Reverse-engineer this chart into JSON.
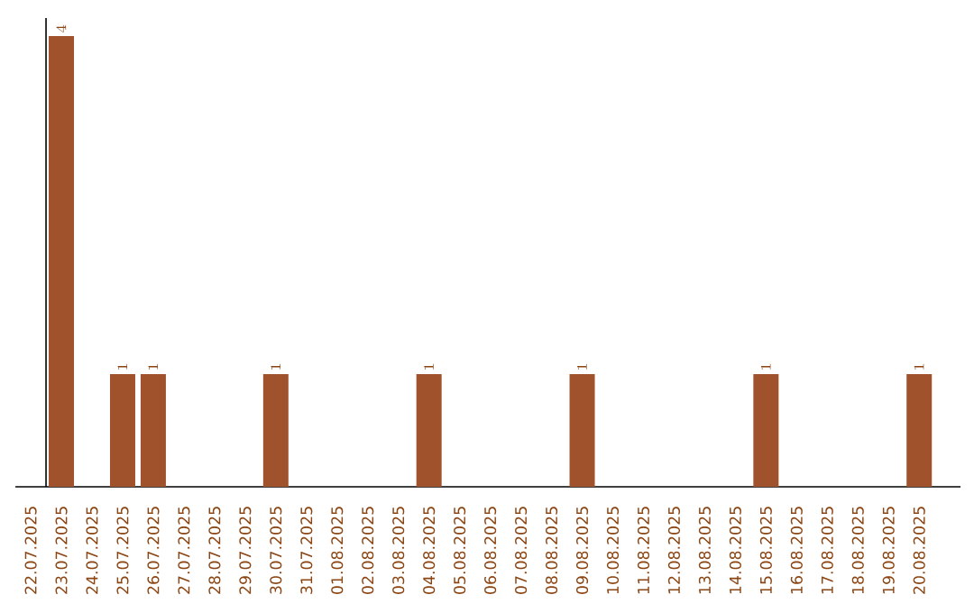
{
  "chart_data": {
    "type": "bar",
    "categories": [
      "22.07.2025",
      "23.07.2025",
      "24.07.2025",
      "25.07.2025",
      "26.07.2025",
      "27.07.2025",
      "28.07.2025",
      "29.07.2025",
      "30.07.2025",
      "31.07.2025",
      "01.08.2025",
      "02.08.2025",
      "03.08.2025",
      "04.08.2025",
      "05.08.2025",
      "06.08.2025",
      "07.08.2025",
      "08.08.2025",
      "09.08.2025",
      "10.08.2025",
      "11.08.2025",
      "12.08.2025",
      "13.08.2025",
      "14.08.2025",
      "15.08.2025",
      "16.08.2025",
      "17.08.2025",
      "18.08.2025",
      "19.08.2025",
      "20.08.2025"
    ],
    "values": [
      null,
      4,
      null,
      1,
      1,
      null,
      null,
      null,
      1,
      null,
      null,
      null,
      null,
      1,
      null,
      null,
      null,
      null,
      1,
      null,
      null,
      null,
      null,
      null,
      1,
      null,
      null,
      null,
      null,
      1
    ],
    "color": "#a0522d",
    "ylim": [
      0,
      4.16
    ],
    "data_labels": true,
    "grid": false
  }
}
